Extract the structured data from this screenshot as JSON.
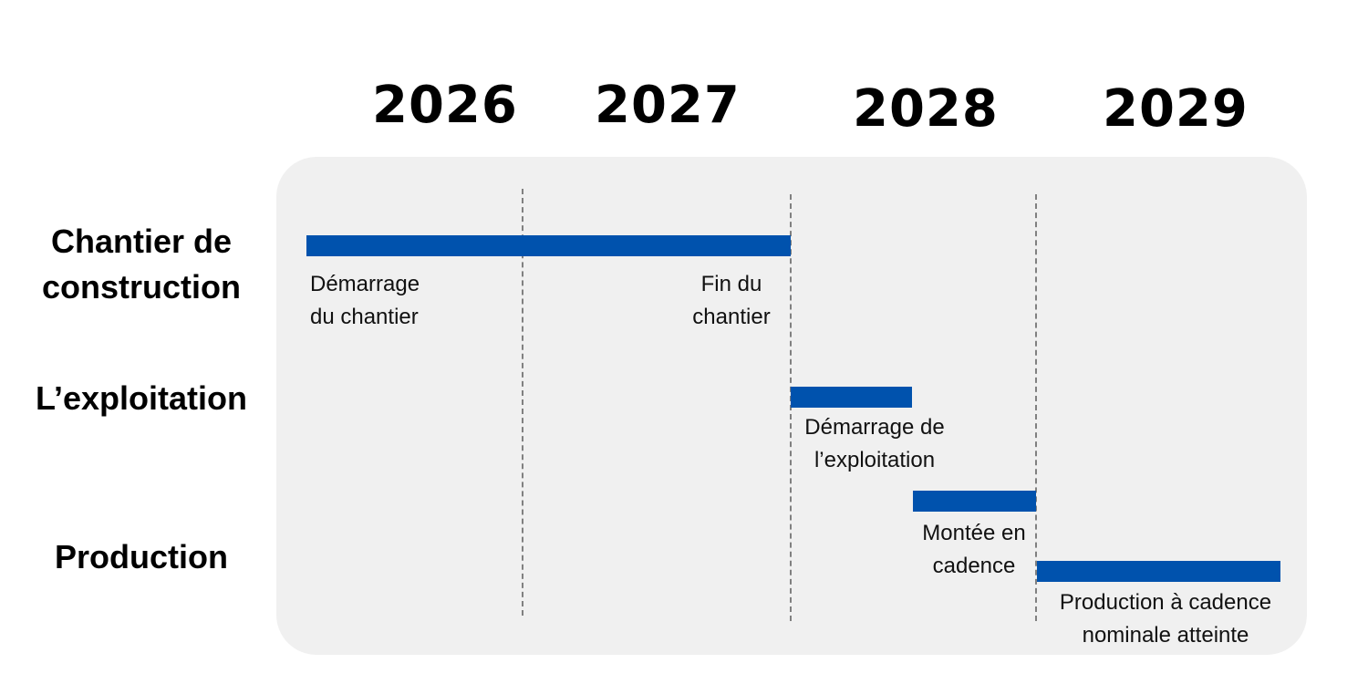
{
  "years": [
    "2026",
    "2027",
    "2028",
    "2029"
  ],
  "rows": {
    "construction": "Chantier de construction",
    "exploitation": "L’exploitation",
    "production": "Production"
  },
  "milestones": {
    "demarrage_chantier": "Démarrage du chantier",
    "fin_chantier": "Fin du chantier",
    "demarrage_exploitation": "Démarrage de l’exploitation",
    "montee_cadence": "Montée en cadence",
    "cadence_nominale": "Production à cadence nominale atteinte"
  },
  "colors": {
    "bar": "#0052ad",
    "panel": "#f0f0f0",
    "divider": "#808080"
  }
}
